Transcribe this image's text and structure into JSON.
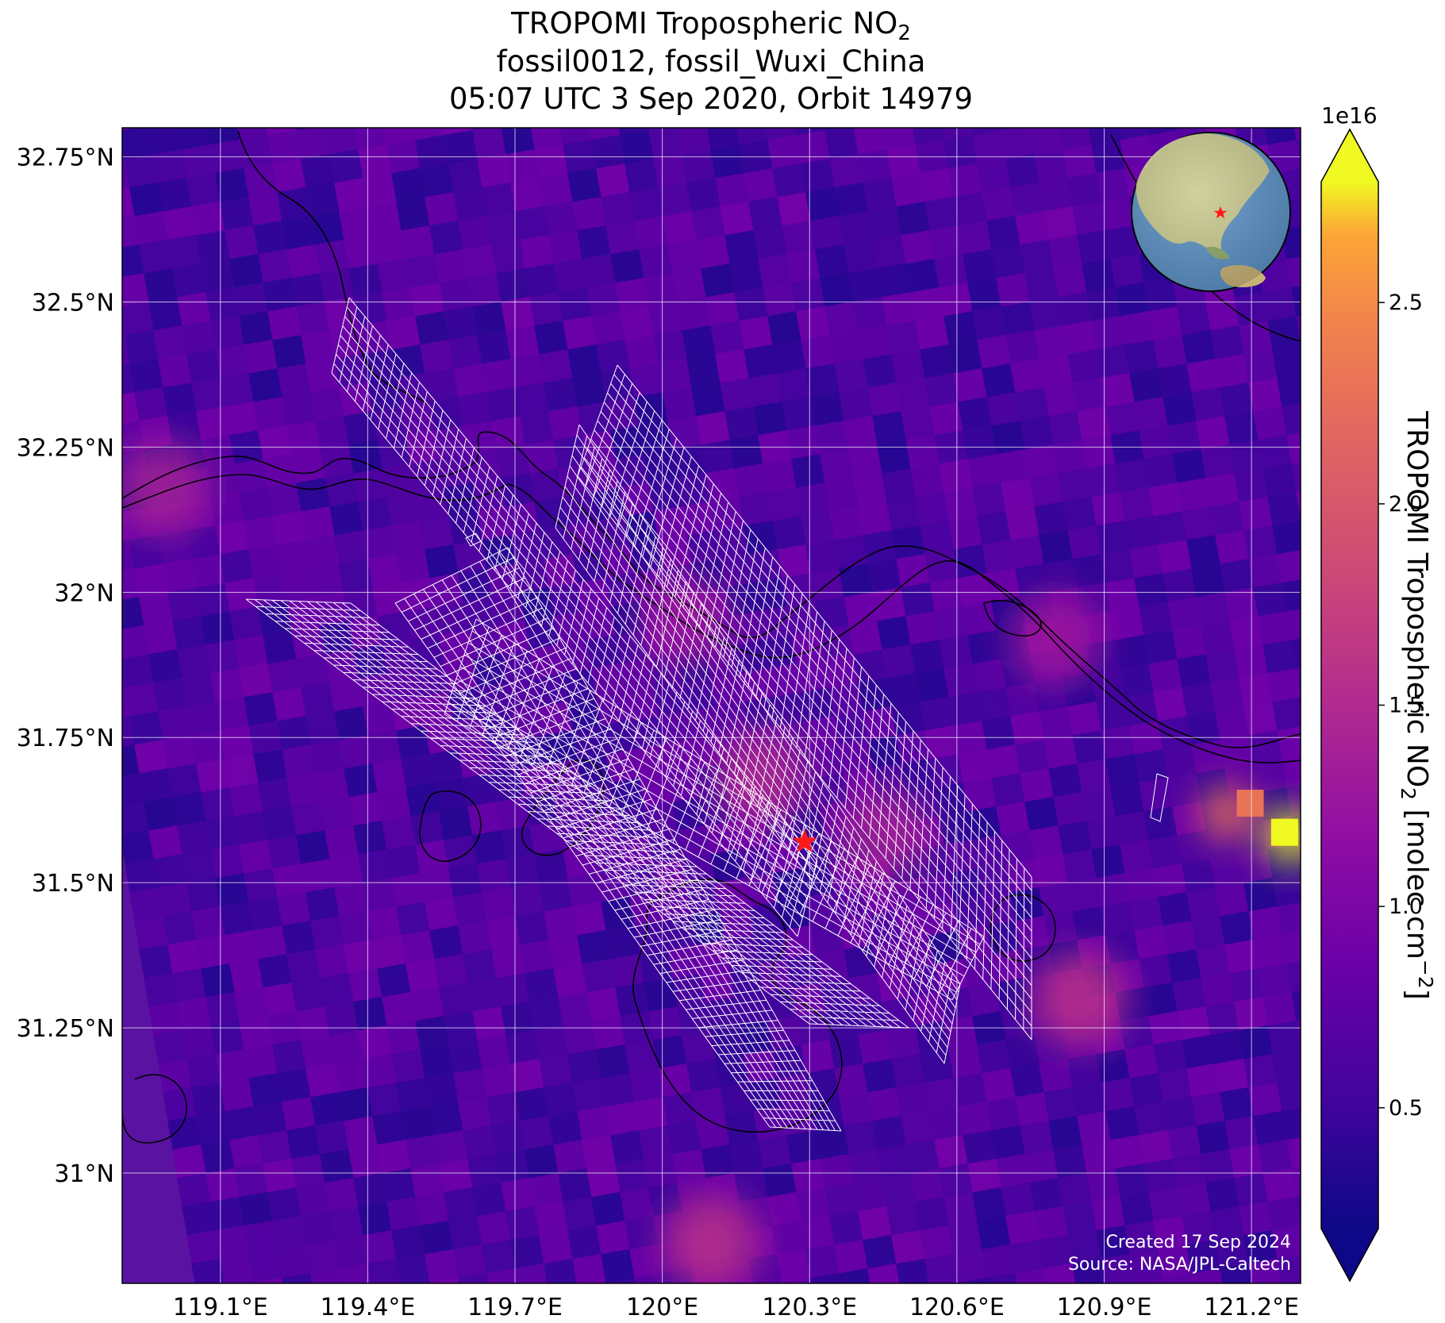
{
  "title": {
    "line1_prefix": "TROPOMI Tropospheric NO",
    "line1_sub": "2",
    "line2": "fossil0012, fossil_Wuxi_China",
    "line3": "05:07 UTC 3 Sep 2020, Orbit 14979"
  },
  "map": {
    "lon_range": [
      118.9,
      121.3
    ],
    "lat_range": [
      30.81,
      32.8
    ],
    "lon_ticks": [
      "119.1°E",
      "119.4°E",
      "119.7°E",
      "120°E",
      "120.3°E",
      "120.6°E",
      "120.9°E",
      "121.2°E"
    ],
    "lon_tick_values": [
      119.1,
      119.4,
      119.7,
      120.0,
      120.3,
      120.6,
      120.9,
      121.2
    ],
    "lat_ticks": [
      "32.75°N",
      "32.5°N",
      "32.25°N",
      "32°N",
      "31.75°N",
      "31.5°N",
      "31.25°N",
      "31°N"
    ],
    "lat_tick_values": [
      32.75,
      32.5,
      32.25,
      32.0,
      31.75,
      31.5,
      31.25,
      31.0
    ],
    "gridlines": true,
    "background_color": "#5a13a0",
    "site": {
      "lon": 120.29,
      "lat": 31.57,
      "marker": "star-icon",
      "color": "#ff1a1a"
    },
    "hotspots": [
      {
        "lon": 120.2,
        "lat": 31.68,
        "value": 1.5
      },
      {
        "lon": 120.45,
        "lat": 31.58,
        "value": 1.4
      },
      {
        "lon": 120.05,
        "lat": 31.95,
        "value": 1.3
      },
      {
        "lon": 120.85,
        "lat": 31.3,
        "value": 1.6
      },
      {
        "lon": 121.15,
        "lat": 31.62,
        "value": 2.3
      },
      {
        "lon": 121.28,
        "lat": 31.58,
        "value": 2.9
      },
      {
        "lon": 120.1,
        "lat": 30.88,
        "value": 1.6
      },
      {
        "lon": 118.98,
        "lat": 32.18,
        "value": 1.4
      },
      {
        "lon": 120.8,
        "lat": 31.92,
        "value": 1.3
      }
    ]
  },
  "credits": {
    "line1": "Created 17 Sep 2024",
    "line2": "Source: NASA/JPL-Caltech"
  },
  "colorbar": {
    "label_prefix": "TROPOMI Tropospheric NO",
    "label_sub": "2",
    "label_units": " [molec cm",
    "label_sup": "−2",
    "label_close": "]",
    "exponent": "1e16",
    "range": [
      0.2,
      2.8
    ],
    "ticks": [
      0.5,
      1.0,
      1.5,
      2.0,
      2.5
    ],
    "tick_labels": [
      "0.5",
      "1.0",
      "1.5",
      "2.0",
      "2.5"
    ],
    "colormap": "plasma",
    "extend": "both"
  },
  "inset": {
    "type": "globe-icon",
    "marker": "star-icon",
    "ocean_color": "#5b91c4",
    "land_color": "#b9c48e"
  },
  "colors": {
    "gridline": "#ffffff",
    "coastline": "#000000",
    "swath_grid": "#ffffff"
  }
}
